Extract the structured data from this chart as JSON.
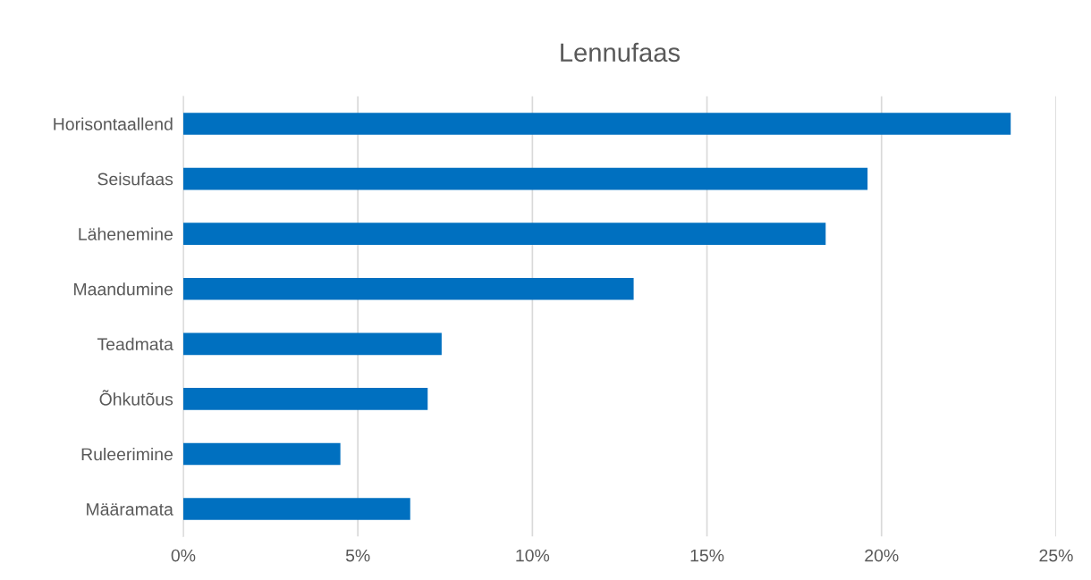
{
  "chart_data": {
    "type": "bar",
    "orientation": "horizontal",
    "title": "Lennufaas",
    "categories": [
      "Horisontaallend",
      "Seisufaas",
      "Lähenemine",
      "Maandumine",
      "Teadmata",
      "Õhkutõus",
      "Ruleerimine",
      "Määramata"
    ],
    "values": [
      23.7,
      19.6,
      18.4,
      12.9,
      7.4,
      7.0,
      4.5,
      6.5
    ],
    "color": "#0070c0",
    "xlim": [
      0,
      25
    ],
    "xticks": [
      {
        "value": 0,
        "label": "0%"
      },
      {
        "value": 5,
        "label": "5%"
      },
      {
        "value": 10,
        "label": "10%"
      },
      {
        "value": 15,
        "label": "15%"
      },
      {
        "value": 20,
        "label": "20%"
      },
      {
        "value": 25,
        "label": "25%"
      }
    ],
    "grid": "x"
  }
}
